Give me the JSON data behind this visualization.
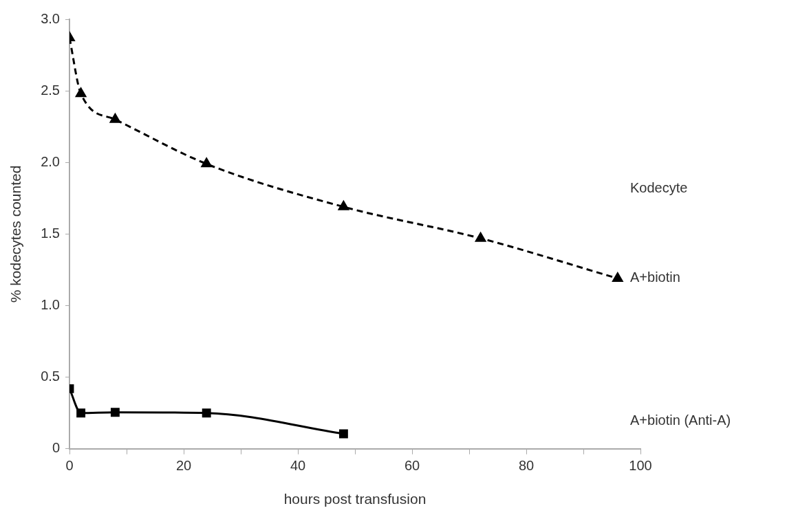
{
  "chart_data": {
    "type": "line",
    "xlabel": "hours post transfusion",
    "ylabel": "% kodecytes counted",
    "legend_title": "Kodecyte",
    "series": [
      {
        "name": "A+biotin",
        "color": "#000000",
        "marker": "triangle",
        "line_style": "dashed",
        "x": [
          0,
          2,
          8,
          24,
          48,
          72,
          96
        ],
        "values": [
          2.87,
          2.48,
          2.3,
          1.99,
          1.69,
          1.47,
          1.19
        ]
      },
      {
        "name": "A+biotin (Anti-A)",
        "color": "#000000",
        "marker": "square",
        "line_style": "solid",
        "x": [
          0,
          2,
          8,
          24,
          48
        ],
        "values": [
          0.42,
          0.25,
          0.255,
          0.25,
          0.105
        ]
      }
    ],
    "xlim": [
      0,
      100
    ],
    "xticks": [
      0,
      {
        "value": 10,
        "label": null
      },
      20,
      {
        "value": 30,
        "label": null
      },
      40,
      {
        "value": 50,
        "label": null
      },
      60,
      {
        "value": 70,
        "label": null
      },
      80,
      {
        "value": 90,
        "label": null
      },
      100
    ],
    "ylim": [
      0,
      3
    ],
    "yticks": [
      0,
      0.5,
      {
        "value": 1,
        "label": "1.0"
      },
      1.5,
      {
        "value": 2,
        "label": "2.0"
      },
      2.5,
      {
        "value": 3,
        "label": "3.0"
      }
    ],
    "grid": false,
    "legend": "right"
  }
}
